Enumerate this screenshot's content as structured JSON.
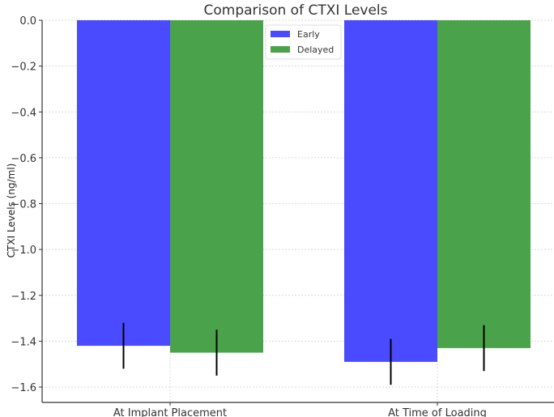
{
  "chart_data": {
    "type": "bar",
    "title": "Comparison of CTXI Levels",
    "xlabel": "",
    "ylabel": "CTXI Levels (ng/ml)",
    "categories": [
      "At Implant Placement",
      "At Time of Loading"
    ],
    "series": [
      {
        "name": "Early",
        "color": "#4a4afe",
        "values": [
          -1.42,
          -1.49
        ],
        "errors": [
          0.1,
          0.1
        ]
      },
      {
        "name": "Delayed",
        "color": "#4aa34a",
        "values": [
          -1.45,
          -1.43
        ],
        "errors": [
          0.1,
          0.1
        ]
      }
    ],
    "ylim": [
      -1.667,
      0.0
    ],
    "yticks": [
      "0.0",
      "-0.2",
      "-0.4",
      "-0.6",
      "-0.8",
      "-1.0",
      "-1.2",
      "-1.4",
      "-1.6"
    ],
    "ytick_values": [
      0,
      -0.2,
      -0.4,
      -0.6,
      -0.8,
      -1.0,
      -1.2,
      -1.4,
      -1.6
    ],
    "grid": true,
    "legend_position": "top-center"
  }
}
